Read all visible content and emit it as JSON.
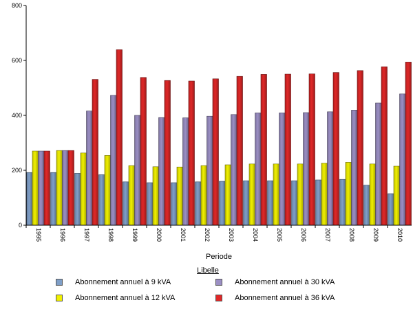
{
  "chart_data": {
    "type": "bar",
    "xlabel": "Periode",
    "ylabel": "",
    "ylim": [
      0,
      800
    ],
    "yticks": [
      0,
      200,
      400,
      600,
      800
    ],
    "grid": false,
    "legend_position": "bottom",
    "legend_title": "Libelle",
    "categories": [
      "1995",
      "1996",
      "1997",
      "1998",
      "1999",
      "2000",
      "2001",
      "2002",
      "2003",
      "2004",
      "2005",
      "2006",
      "2007",
      "2008",
      "2009",
      "2010"
    ],
    "series": [
      {
        "name": "Abonnement annuel à 9 kVA",
        "color": "#7f9fc8",
        "values": [
          192,
          192,
          189,
          184,
          158,
          155,
          155,
          158,
          160,
          162,
          162,
          162,
          165,
          167,
          146,
          115
        ]
      },
      {
        "name": "Abonnement annuel à 12 kVA",
        "color": "#f0f000",
        "values": [
          270,
          272,
          263,
          254,
          217,
          213,
          212,
          217,
          220,
          223,
          223,
          223,
          226,
          229,
          223,
          215
        ]
      },
      {
        "name": "Abonnement annuel à 30 kVA",
        "color": "#9b8fc4",
        "values": [
          270,
          272,
          416,
          473,
          400,
          392,
          391,
          397,
          403,
          409,
          409,
          410,
          413,
          419,
          445,
          478
        ]
      },
      {
        "name": "Abonnement annuel à 36 kVA",
        "color": "#e02828",
        "values": [
          270,
          272,
          531,
          639,
          538,
          527,
          525,
          533,
          542,
          549,
          550,
          551,
          556,
          563,
          577,
          594
        ]
      }
    ]
  }
}
